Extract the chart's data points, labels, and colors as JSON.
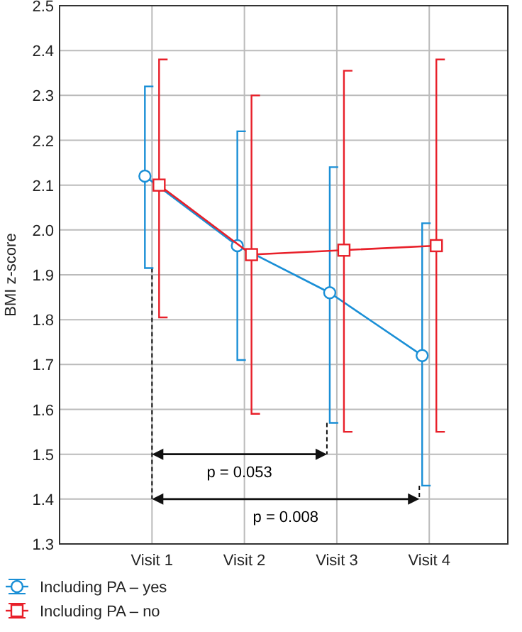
{
  "chart_data": {
    "type": "line",
    "ylabel": "BMI z-score",
    "categories": [
      "Visit 1",
      "Visit 2",
      "Visit 3",
      "Visit 4"
    ],
    "ylim": [
      1.3,
      2.5
    ],
    "yticks": [
      1.3,
      1.4,
      1.5,
      1.6,
      1.7,
      1.8,
      1.9,
      {
        "value": 2,
        "label": "2.0"
      },
      2.1,
      2.2,
      2.3,
      2.4,
      2.5
    ],
    "grid": true,
    "legend": "bottom left",
    "line_style": "solid",
    "series": [
      {
        "name": "Including PA – yes",
        "color": "#1a8fd6",
        "marker": "circle",
        "values": [
          2.12,
          1.965,
          1.86,
          1.72
        ],
        "errors": [
          [
            1.915,
            2.32
          ],
          [
            1.71,
            2.22
          ],
          [
            1.57,
            2.14
          ],
          [
            1.43,
            2.015
          ]
        ]
      },
      {
        "name": "Including PA – no",
        "color": "#e8202a",
        "marker": "square",
        "values": [
          2.1,
          1.945,
          1.955,
          1.965
        ],
        "errors": [
          [
            1.805,
            2.38
          ],
          [
            1.59,
            2.3
          ],
          [
            1.55,
            2.355
          ],
          [
            1.55,
            2.38
          ]
        ]
      }
    ],
    "annotations": [
      "p = 0.053",
      "p = 0.008"
    ]
  }
}
